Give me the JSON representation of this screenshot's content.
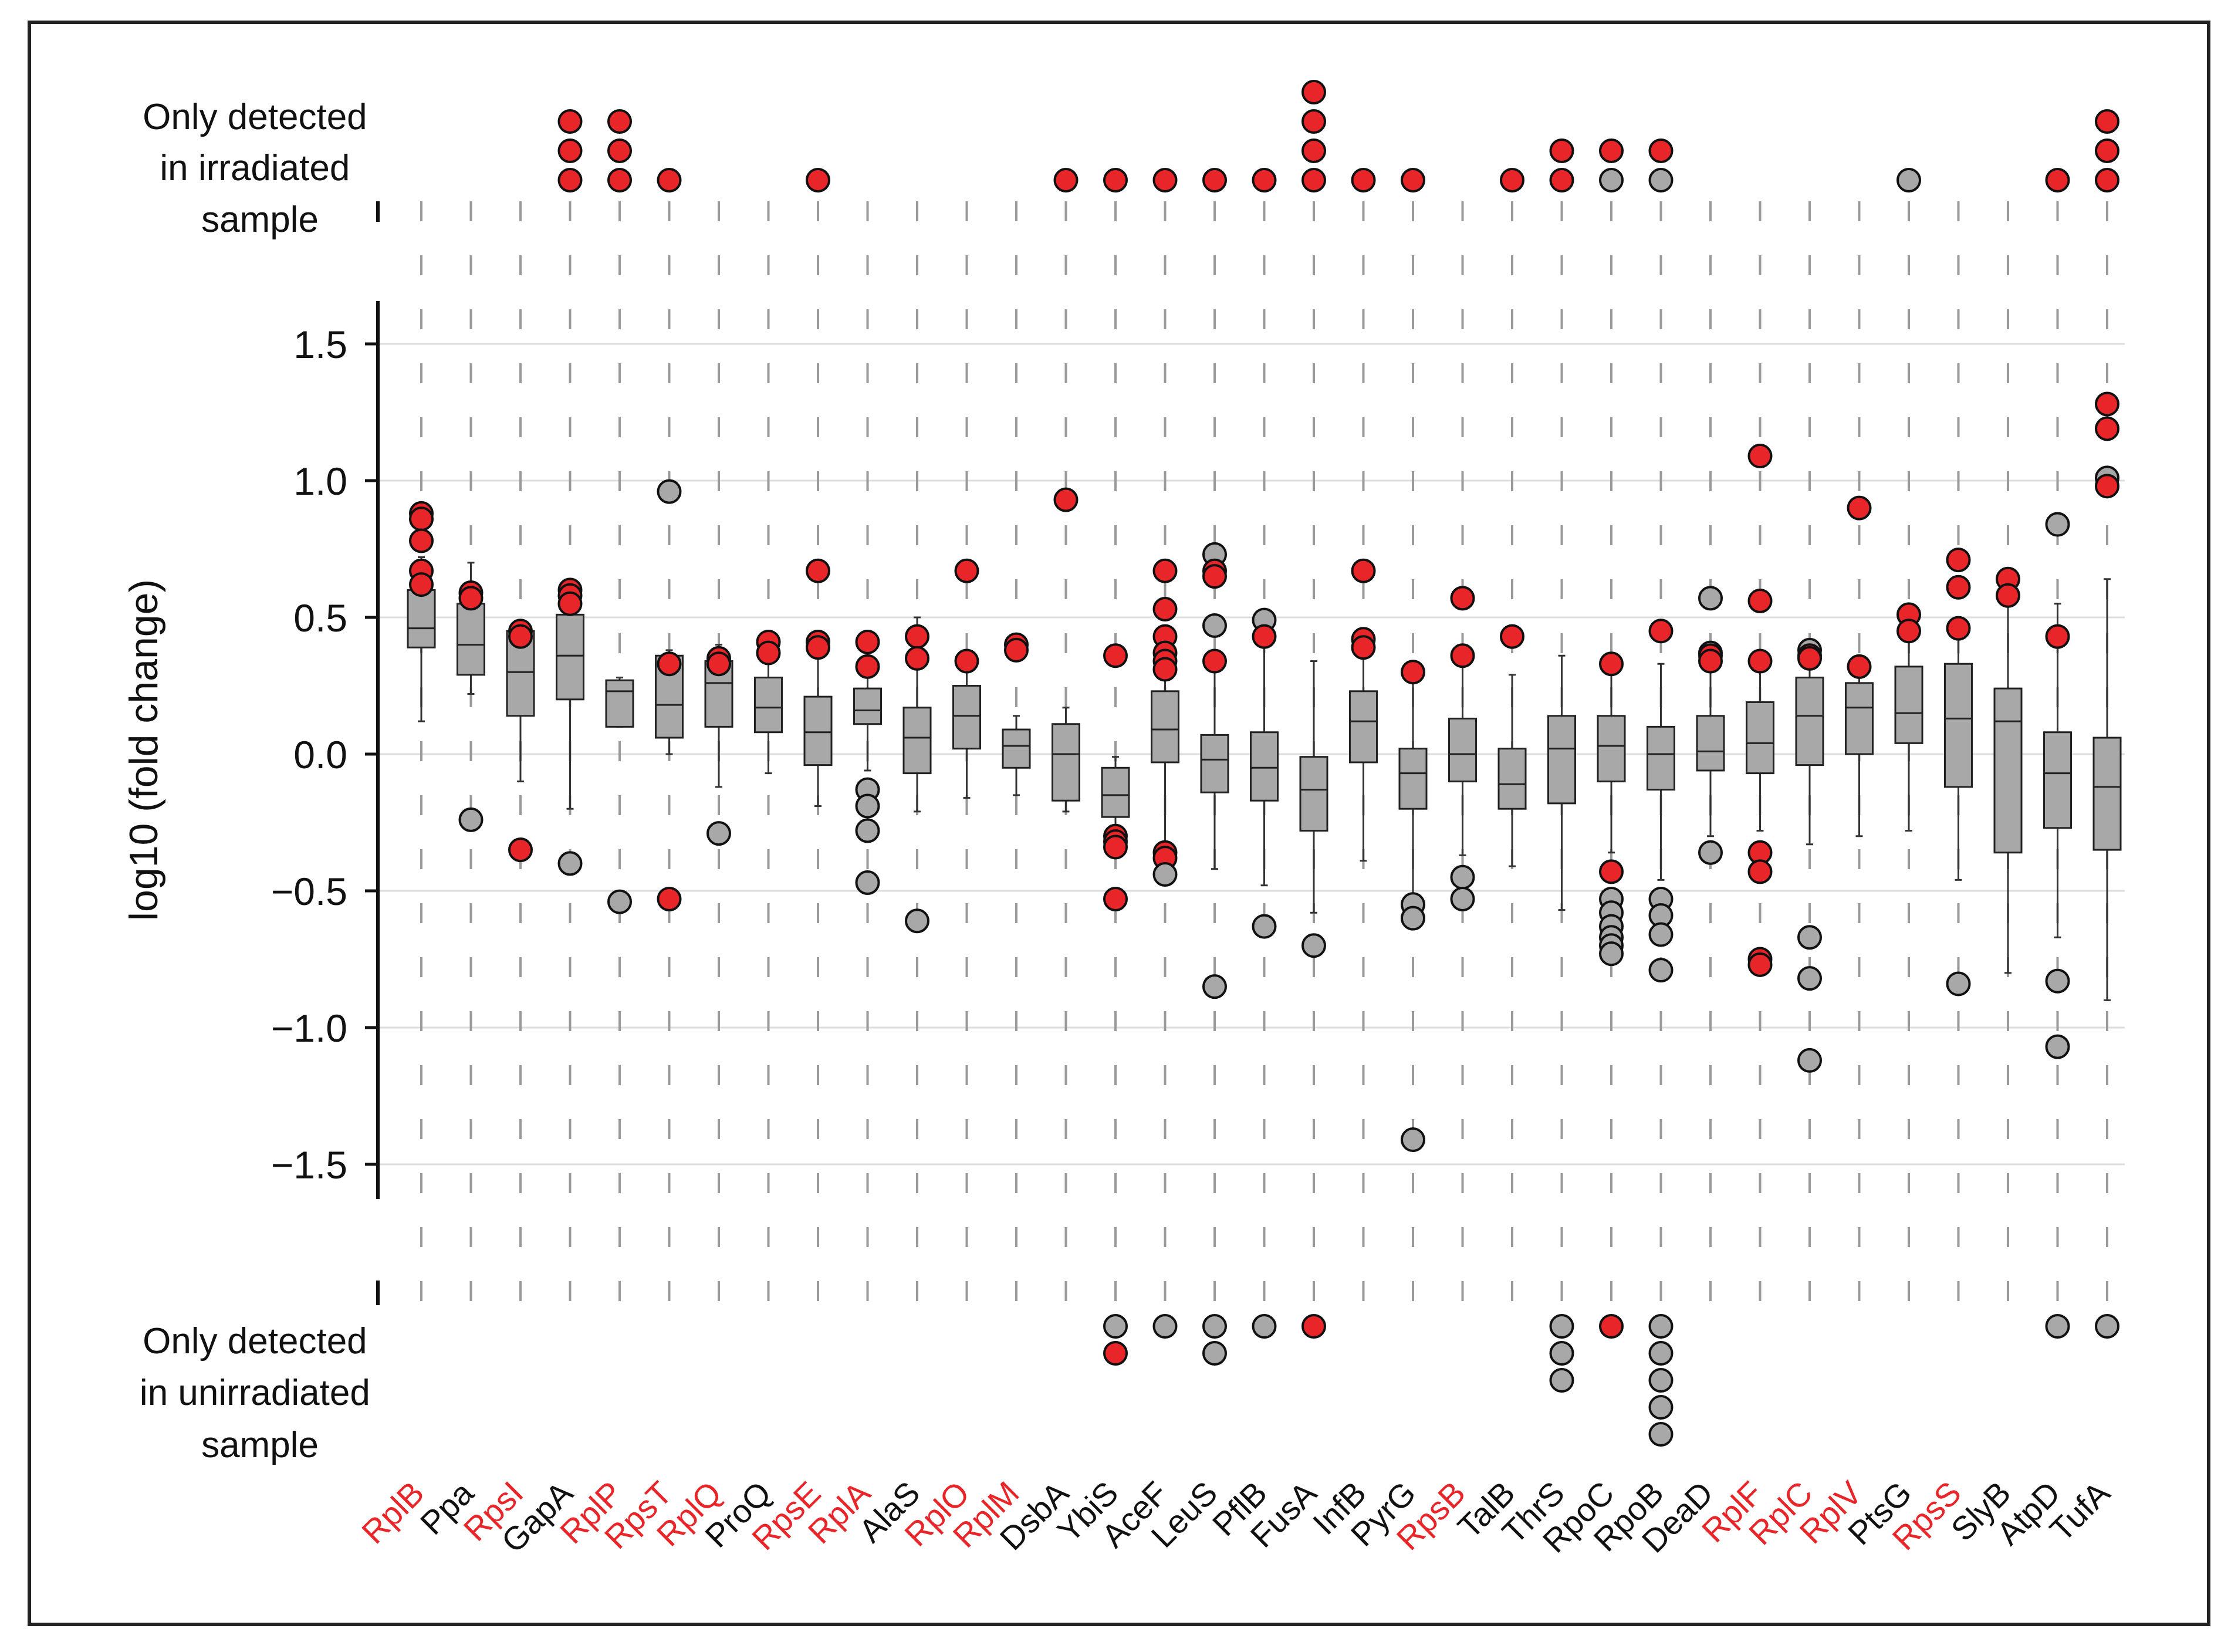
{
  "chart_data": {
    "type": "box",
    "ylabel": "log10 (fold change)",
    "ylim": [
      -1.62,
      1.65
    ],
    "yticks": [
      1.5,
      1.0,
      0.5,
      0.0,
      -0.5,
      -1.0,
      -1.5
    ],
    "ytick_labels": [
      "1.5",
      "1.0",
      "0.5",
      "0.0",
      "−0.5",
      "−1.0",
      "−1.5"
    ],
    "top_panel_label": [
      "Only detected",
      "in irradiated",
      "sample"
    ],
    "bottom_panel_label": [
      "Only detected",
      "in unirradiated",
      "sample"
    ],
    "colors": {
      "highlight": "#e8262a",
      "neutral": "#a8a8a8",
      "box": "#a8a8a8",
      "red_label": "#e8262a",
      "black_label": "#111111",
      "frame": "#222222",
      "grid": "#dddddd",
      "tick_dash": "#9a9a9a"
    },
    "proteins": [
      {
        "name": "RplB",
        "red": true,
        "box": {
          "q1": 0.39,
          "med": 0.46,
          "q3": 0.6,
          "lo": 0.12,
          "hi": 0.72
        },
        "pts": [
          [
            0.88,
            "r"
          ],
          [
            0.86,
            "r"
          ],
          [
            0.78,
            "r"
          ],
          [
            0.67,
            "r"
          ],
          [
            0.62,
            "r"
          ]
        ],
        "top": [],
        "bottom": []
      },
      {
        "name": "Ppa",
        "red": false,
        "box": {
          "q1": 0.29,
          "med": 0.4,
          "q3": 0.55,
          "lo": 0.22,
          "hi": 0.7
        },
        "pts": [
          [
            0.59,
            "r"
          ],
          [
            0.57,
            "r"
          ],
          [
            -0.24,
            "g"
          ]
        ],
        "top": [],
        "bottom": []
      },
      {
        "name": "RpsI",
        "red": true,
        "box": {
          "q1": 0.14,
          "med": 0.3,
          "q3": 0.45,
          "lo": -0.1,
          "hi": 0.46
        },
        "pts": [
          [
            0.45,
            "r"
          ],
          [
            0.43,
            "r"
          ],
          [
            -0.35,
            "r"
          ]
        ],
        "top": [],
        "bottom": []
      },
      {
        "name": "GapA",
        "red": false,
        "box": {
          "q1": 0.2,
          "med": 0.36,
          "q3": 0.51,
          "lo": -0.2,
          "hi": 0.57
        },
        "pts": [
          [
            0.6,
            "r"
          ],
          [
            0.58,
            "r"
          ],
          [
            0.55,
            "r"
          ],
          [
            -0.4,
            "g"
          ]
        ],
        "top": [
          "r",
          "r",
          "r"
        ],
        "bottom": []
      },
      {
        "name": "RplP",
        "red": true,
        "box": {
          "q1": 0.1,
          "med": 0.23,
          "q3": 0.27,
          "lo": 0.1,
          "hi": 0.28
        },
        "pts": [
          [
            -0.54,
            "g"
          ]
        ],
        "top": [
          "r",
          "r",
          "r"
        ],
        "bottom": []
      },
      {
        "name": "RpsT",
        "red": true,
        "box": {
          "q1": 0.06,
          "med": 0.18,
          "q3": 0.36,
          "lo": 0.0,
          "hi": 0.38
        },
        "pts": [
          [
            0.96,
            "g"
          ],
          [
            0.33,
            "r"
          ],
          [
            -0.53,
            "r"
          ]
        ],
        "top": [
          "r"
        ],
        "bottom": []
      },
      {
        "name": "RplQ",
        "red": true,
        "box": {
          "q1": 0.1,
          "med": 0.26,
          "q3": 0.34,
          "lo": -0.12,
          "hi": 0.4
        },
        "pts": [
          [
            0.35,
            "r"
          ],
          [
            0.33,
            "r"
          ],
          [
            -0.29,
            "g"
          ]
        ],
        "top": [],
        "bottom": []
      },
      {
        "name": "ProQ",
        "red": false,
        "box": {
          "q1": 0.08,
          "med": 0.17,
          "q3": 0.28,
          "lo": -0.07,
          "hi": 0.36
        },
        "pts": [
          [
            0.41,
            "r"
          ],
          [
            0.37,
            "r"
          ]
        ],
        "top": [],
        "bottom": []
      },
      {
        "name": "RpsE",
        "red": true,
        "box": {
          "q1": -0.04,
          "med": 0.08,
          "q3": 0.21,
          "lo": -0.19,
          "hi": 0.4
        },
        "pts": [
          [
            0.67,
            "r"
          ],
          [
            0.41,
            "r"
          ],
          [
            0.39,
            "r"
          ]
        ],
        "top": [
          "r"
        ],
        "bottom": []
      },
      {
        "name": "RplA",
        "red": true,
        "box": {
          "q1": 0.11,
          "med": 0.16,
          "q3": 0.24,
          "lo": -0.06,
          "hi": 0.31
        },
        "pts": [
          [
            0.41,
            "r"
          ],
          [
            0.32,
            "r"
          ],
          [
            -0.13,
            "g"
          ],
          [
            -0.19,
            "g"
          ],
          [
            -0.28,
            "g"
          ],
          [
            -0.47,
            "g"
          ]
        ],
        "top": [],
        "bottom": []
      },
      {
        "name": "AlaS",
        "red": false,
        "box": {
          "q1": -0.07,
          "med": 0.06,
          "q3": 0.17,
          "lo": -0.21,
          "hi": 0.5
        },
        "pts": [
          [
            0.43,
            "r"
          ],
          [
            0.35,
            "r"
          ],
          [
            -0.61,
            "g"
          ]
        ],
        "top": [],
        "bottom": []
      },
      {
        "name": "RplO",
        "red": true,
        "box": {
          "q1": 0.02,
          "med": 0.14,
          "q3": 0.25,
          "lo": -0.16,
          "hi": 0.34
        },
        "pts": [
          [
            0.67,
            "r"
          ],
          [
            0.34,
            "r"
          ]
        ],
        "top": [],
        "bottom": []
      },
      {
        "name": "RplM",
        "red": true,
        "box": {
          "q1": -0.05,
          "med": 0.03,
          "q3": 0.09,
          "lo": -0.15,
          "hi": 0.14
        },
        "pts": [
          [
            0.4,
            "r"
          ],
          [
            0.38,
            "r"
          ]
        ],
        "top": [],
        "bottom": []
      },
      {
        "name": "DsbA",
        "red": false,
        "box": {
          "q1": -0.17,
          "med": 0.0,
          "q3": 0.11,
          "lo": -0.21,
          "hi": 0.17
        },
        "pts": [
          [
            0.93,
            "r"
          ]
        ],
        "top": [
          "r"
        ],
        "bottom": []
      },
      {
        "name": "YbiS",
        "red": false,
        "box": {
          "q1": -0.23,
          "med": -0.15,
          "q3": -0.05,
          "lo": -0.27,
          "hi": -0.01
        },
        "pts": [
          [
            0.36,
            "r"
          ],
          [
            -0.3,
            "r"
          ],
          [
            -0.32,
            "r"
          ],
          [
            -0.34,
            "r"
          ],
          [
            -0.53,
            "r"
          ]
        ],
        "top": [
          "r"
        ],
        "bottom": [
          "g",
          "r"
        ]
      },
      {
        "name": "AceF",
        "red": false,
        "box": {
          "q1": -0.03,
          "med": 0.09,
          "q3": 0.23,
          "lo": -0.34,
          "hi": 0.36
        },
        "pts": [
          [
            0.67,
            "r"
          ],
          [
            0.53,
            "r"
          ],
          [
            0.43,
            "r"
          ],
          [
            0.37,
            "r"
          ],
          [
            0.34,
            "r"
          ],
          [
            0.31,
            "r"
          ],
          [
            -0.36,
            "r"
          ],
          [
            -0.38,
            "r"
          ],
          [
            -0.44,
            "g"
          ]
        ],
        "top": [
          "r"
        ],
        "bottom": [
          "g"
        ]
      },
      {
        "name": "LeuS",
        "red": false,
        "box": {
          "q1": -0.14,
          "med": -0.02,
          "q3": 0.07,
          "lo": -0.42,
          "hi": 0.33
        },
        "pts": [
          [
            0.73,
            "g"
          ],
          [
            0.67,
            "r"
          ],
          [
            0.65,
            "r"
          ],
          [
            0.47,
            "g"
          ],
          [
            0.34,
            "r"
          ],
          [
            -0.85,
            "g"
          ]
        ],
        "top": [
          "r"
        ],
        "bottom": [
          "g",
          "g"
        ]
      },
      {
        "name": "PflB",
        "red": false,
        "box": {
          "q1": -0.17,
          "med": -0.05,
          "q3": 0.08,
          "lo": -0.48,
          "hi": 0.47
        },
        "pts": [
          [
            0.49,
            "g"
          ],
          [
            0.43,
            "r"
          ],
          [
            -0.63,
            "g"
          ]
        ],
        "top": [
          "r"
        ],
        "bottom": [
          "g"
        ]
      },
      {
        "name": "FusA",
        "red": false,
        "box": {
          "q1": -0.28,
          "med": -0.13,
          "q3": -0.01,
          "lo": -0.58,
          "hi": 0.34
        },
        "pts": [
          [
            -0.7,
            "g"
          ]
        ],
        "top": [
          "r",
          "r",
          "r",
          "r"
        ],
        "bottom": [
          "r"
        ]
      },
      {
        "name": "InfB",
        "red": false,
        "box": {
          "q1": -0.03,
          "med": 0.12,
          "q3": 0.23,
          "lo": -0.39,
          "hi": 0.35
        },
        "pts": [
          [
            0.67,
            "r"
          ],
          [
            0.42,
            "r"
          ],
          [
            0.39,
            "r"
          ]
        ],
        "top": [
          "r"
        ],
        "bottom": []
      },
      {
        "name": "PyrG",
        "red": false,
        "box": {
          "q1": -0.2,
          "med": -0.07,
          "q3": 0.02,
          "lo": -0.52,
          "hi": 0.27
        },
        "pts": [
          [
            0.3,
            "r"
          ],
          [
            -0.55,
            "g"
          ],
          [
            -0.6,
            "g"
          ],
          [
            -1.41,
            "g"
          ]
        ],
        "top": [
          "r"
        ],
        "bottom": []
      },
      {
        "name": "RpsB",
        "red": true,
        "box": {
          "q1": -0.1,
          "med": 0.0,
          "q3": 0.13,
          "lo": -0.37,
          "hi": 0.33
        },
        "pts": [
          [
            0.57,
            "r"
          ],
          [
            0.36,
            "r"
          ],
          [
            -0.45,
            "g"
          ],
          [
            -0.53,
            "g"
          ]
        ],
        "top": [],
        "bottom": []
      },
      {
        "name": "TalB",
        "red": false,
        "box": {
          "q1": -0.2,
          "med": -0.11,
          "q3": 0.02,
          "lo": -0.41,
          "hi": 0.29
        },
        "pts": [
          [
            0.43,
            "r"
          ]
        ],
        "top": [
          "r"
        ],
        "bottom": []
      },
      {
        "name": "ThrS",
        "red": false,
        "box": {
          "q1": -0.18,
          "med": 0.02,
          "q3": 0.14,
          "lo": -0.57,
          "hi": 0.36
        },
        "pts": [],
        "top": [
          "r",
          "r"
        ],
        "bottom": [
          "g",
          "g",
          "g"
        ]
      },
      {
        "name": "RpoC",
        "red": false,
        "box": {
          "q1": -0.1,
          "med": 0.03,
          "q3": 0.14,
          "lo": -0.36,
          "hi": 0.3
        },
        "pts": [
          [
            0.33,
            "r"
          ],
          [
            -0.43,
            "r"
          ],
          [
            -0.53,
            "g"
          ],
          [
            -0.58,
            "g"
          ],
          [
            -0.63,
            "g"
          ],
          [
            -0.67,
            "g"
          ],
          [
            -0.7,
            "g"
          ],
          [
            -0.73,
            "g"
          ]
        ],
        "top": [
          "g",
          "r"
        ],
        "bottom": [
          "r"
        ]
      },
      {
        "name": "RpoB",
        "red": false,
        "box": {
          "q1": -0.13,
          "med": 0.0,
          "q3": 0.1,
          "lo": -0.46,
          "hi": 0.33
        },
        "pts": [
          [
            0.45,
            "r"
          ],
          [
            -0.53,
            "g"
          ],
          [
            -0.59,
            "g"
          ],
          [
            -0.66,
            "g"
          ],
          [
            -0.79,
            "g"
          ]
        ],
        "top": [
          "g",
          "r"
        ],
        "bottom": [
          "g",
          "g",
          "g",
          "g",
          "g"
        ]
      },
      {
        "name": "DeaD",
        "red": false,
        "box": {
          "q1": -0.06,
          "med": 0.01,
          "q3": 0.14,
          "lo": -0.3,
          "hi": 0.3
        },
        "pts": [
          [
            0.57,
            "g"
          ],
          [
            0.37,
            "g"
          ],
          [
            0.36,
            "r"
          ],
          [
            0.34,
            "r"
          ],
          [
            -0.36,
            "g"
          ]
        ],
        "top": [],
        "bottom": []
      },
      {
        "name": "RplF",
        "red": true,
        "box": {
          "q1": -0.07,
          "med": 0.04,
          "q3": 0.19,
          "lo": -0.28,
          "hi": 0.33
        },
        "pts": [
          [
            1.09,
            "r"
          ],
          [
            0.56,
            "r"
          ],
          [
            0.34,
            "r"
          ],
          [
            -0.36,
            "r"
          ],
          [
            -0.43,
            "r"
          ],
          [
            -0.75,
            "r"
          ],
          [
            -0.77,
            "r"
          ]
        ],
        "top": [],
        "bottom": []
      },
      {
        "name": "RplC",
        "red": true,
        "box": {
          "q1": -0.04,
          "med": 0.14,
          "q3": 0.28,
          "lo": -0.33,
          "hi": 0.37
        },
        "pts": [
          [
            0.38,
            "g"
          ],
          [
            0.36,
            "r"
          ],
          [
            0.35,
            "r"
          ],
          [
            -0.67,
            "g"
          ],
          [
            -0.82,
            "g"
          ],
          [
            -1.12,
            "g"
          ]
        ],
        "top": [],
        "bottom": []
      },
      {
        "name": "RplV",
        "red": true,
        "box": {
          "q1": 0.0,
          "med": 0.17,
          "q3": 0.26,
          "lo": -0.3,
          "hi": 0.3
        },
        "pts": [
          [
            0.9,
            "r"
          ],
          [
            0.32,
            "r"
          ]
        ],
        "top": [],
        "bottom": []
      },
      {
        "name": "PtsG",
        "red": false,
        "box": {
          "q1": 0.04,
          "med": 0.15,
          "q3": 0.32,
          "lo": -0.28,
          "hi": 0.45
        },
        "pts": [
          [
            0.51,
            "r"
          ],
          [
            0.45,
            "r"
          ]
        ],
        "top": [
          "g"
        ],
        "bottom": []
      },
      {
        "name": "RpsS",
        "red": true,
        "box": {
          "q1": -0.12,
          "med": 0.13,
          "q3": 0.33,
          "lo": -0.46,
          "hi": 0.45
        },
        "pts": [
          [
            0.71,
            "r"
          ],
          [
            0.61,
            "r"
          ],
          [
            0.46,
            "r"
          ],
          [
            -0.84,
            "g"
          ]
        ],
        "top": [],
        "bottom": []
      },
      {
        "name": "SlyB",
        "red": false,
        "box": {
          "q1": -0.36,
          "med": 0.12,
          "q3": 0.24,
          "lo": -0.8,
          "hi": 0.55
        },
        "pts": [
          [
            0.64,
            "r"
          ],
          [
            0.58,
            "r"
          ]
        ],
        "top": [],
        "bottom": []
      },
      {
        "name": "AtpD",
        "red": false,
        "box": {
          "q1": -0.27,
          "med": -0.07,
          "q3": 0.08,
          "lo": -0.67,
          "hi": 0.55
        },
        "pts": [
          [
            0.84,
            "g"
          ],
          [
            0.43,
            "r"
          ],
          [
            -0.83,
            "g"
          ],
          [
            -1.07,
            "g"
          ]
        ],
        "top": [
          "r"
        ],
        "bottom": [
          "g"
        ]
      },
      {
        "name": "TufA",
        "red": false,
        "box": {
          "q1": -0.35,
          "med": -0.12,
          "q3": 0.06,
          "lo": -0.9,
          "hi": 0.64
        },
        "pts": [
          [
            1.28,
            "r"
          ],
          [
            1.19,
            "r"
          ],
          [
            1.01,
            "g"
          ],
          [
            0.98,
            "r"
          ]
        ],
        "top": [
          "r",
          "r",
          "r"
        ],
        "bottom": [
          "g"
        ]
      }
    ]
  }
}
